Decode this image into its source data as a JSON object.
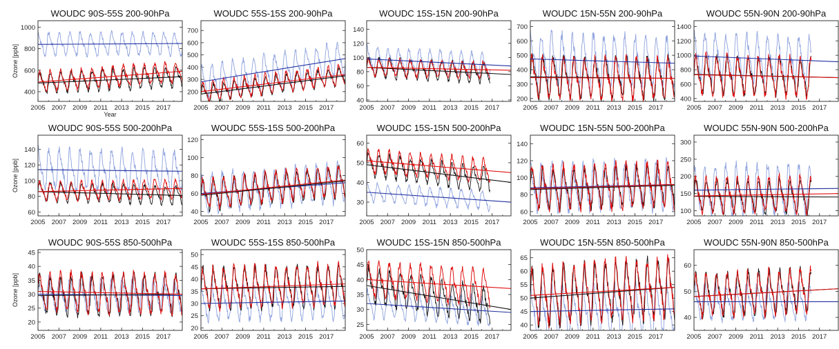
{
  "figure": {
    "colors": {
      "black": "#111111",
      "red": "#e01010",
      "blue": "#2030a0",
      "lightblue": "#8ea2dd"
    }
  },
  "chart_data": [
    {
      "type": "line",
      "title": "WOUDC 90S-55S 200-90hPa",
      "xlabel": "Year",
      "ylabel": "Ozone [ppb]",
      "xlim": [
        2005,
        2018.8
      ],
      "xticks": [
        2005,
        2007,
        2009,
        2011,
        2013,
        2015,
        2017
      ],
      "ylim": [
        310,
        1060
      ],
      "yticks": [
        400,
        600,
        800,
        1000
      ],
      "trends": {
        "black": [
          480,
          540
        ],
        "red": [
          490,
          590
        ],
        "blue": [
          840,
          848
        ]
      },
      "amplitudes": {
        "black": 80,
        "red": 80,
        "blue": 90
      },
      "x_end": 2018.8
    },
    {
      "type": "line",
      "title": "WOUDC 55S-15S 200-90hPa",
      "xlabel": "",
      "ylabel": "",
      "xlim": [
        2005,
        2018.8
      ],
      "xticks": [
        2005,
        2007,
        2009,
        2011,
        2013,
        2015,
        2017
      ],
      "ylim": [
        120,
        780
      ],
      "yticks": [
        200,
        300,
        400,
        500,
        600,
        700
      ],
      "trends": {
        "black": [
          180,
          330
        ],
        "red": [
          200,
          340
        ],
        "blue": [
          280,
          470
        ]
      },
      "amplitudes": {
        "black": 60,
        "red": 70,
        "blue": 110
      },
      "x_end": 2018.8
    },
    {
      "type": "line",
      "title": "WOUDC 15S-15N 200-90hPa",
      "xlabel": "",
      "ylabel": "",
      "xlim": [
        2005,
        2018.8
      ],
      "xticks": [
        2005,
        2007,
        2009,
        2011,
        2013,
        2015,
        2017
      ],
      "ylim": [
        38,
        152
      ],
      "yticks": [
        40,
        60,
        80,
        100,
        120,
        140
      ],
      "trends": {
        "black": [
          86,
          76
        ],
        "red": [
          86,
          82
        ],
        "blue": [
          98,
          88
        ]
      },
      "amplitudes": {
        "black": 12,
        "red": 10,
        "blue": 14
      },
      "x_end": 2016.8
    },
    {
      "type": "line",
      "title": "WOUDC 15N-55N 200-90hPa",
      "xlabel": "",
      "ylabel": "",
      "xlim": [
        2005,
        2018.8
      ],
      "xticks": [
        2005,
        2007,
        2009,
        2011,
        2013,
        2015,
        2017
      ],
      "ylim": [
        180,
        740
      ],
      "yticks": [
        200,
        300,
        400,
        500,
        600,
        700
      ],
      "trends": {
        "black": [
          350,
          340
        ],
        "red": [
          345,
          340
        ],
        "blue": [
          475,
          445
        ]
      },
      "amplitudes": {
        "black": 120,
        "red": 120,
        "blue": 150
      },
      "x_end": 2018.8
    },
    {
      "type": "line",
      "title": "WOUDC 55N-90N 200-90hPa",
      "xlabel": "",
      "ylabel": "",
      "xlim": [
        2005,
        2018.8
      ],
      "xticks": [
        2005,
        2007,
        2009,
        2011,
        2013,
        2015,
        2017
      ],
      "ylim": [
        360,
        1480
      ],
      "yticks": [
        400,
        600,
        800,
        1000,
        1200,
        1400
      ],
      "trends": {
        "black": [
          735,
          690
        ],
        "red": [
          730,
          690
        ],
        "blue": [
          990,
          910
        ]
      },
      "amplitudes": {
        "black": 220,
        "red": 230,
        "blue": 270
      },
      "x_end": 2016.2
    },
    {
      "type": "line",
      "title": "WOUDC 90S-55S 500-200hPa",
      "xlabel": "",
      "ylabel": "Ozone [ppb]",
      "xlim": [
        2005,
        2018.8
      ],
      "xticks": [
        2005,
        2007,
        2009,
        2011,
        2013,
        2015,
        2017
      ],
      "ylim": [
        55,
        158
      ],
      "yticks": [
        60,
        80,
        100,
        120,
        140
      ],
      "trends": {
        "black": [
          86,
          81
        ],
        "red": [
          86,
          90
        ],
        "blue": [
          114,
          112
        ]
      },
      "amplitudes": {
        "black": 10,
        "red": 10,
        "blue": 22
      },
      "x_end": 2018.8
    },
    {
      "type": "line",
      "title": "WOUDC 55S-15S 500-200hPa",
      "xlabel": "",
      "ylabel": "",
      "xlim": [
        2005,
        2018.8
      ],
      "xticks": [
        2005,
        2007,
        2009,
        2011,
        2013,
        2015,
        2017
      ],
      "ylim": [
        35,
        125
      ],
      "yticks": [
        40,
        60,
        80,
        100,
        120
      ],
      "trends": {
        "black": [
          58,
          74
        ],
        "red": [
          59,
          75
        ],
        "blue": [
          60,
          72
        ]
      },
      "amplitudes": {
        "black": 14,
        "red": 14,
        "blue": 18
      },
      "x_end": 2018.8
    },
    {
      "type": "line",
      "title": "WOUDC 15S-15N 500-200hPa",
      "xlabel": "",
      "ylabel": "",
      "xlim": [
        2005,
        2018.8
      ],
      "xticks": [
        2005,
        2007,
        2009,
        2011,
        2013,
        2015,
        2017
      ],
      "ylim": [
        23,
        64
      ],
      "yticks": [
        30,
        40,
        50,
        60
      ],
      "trends": {
        "black": [
          49,
          40
        ],
        "red": [
          51,
          45
        ],
        "blue": [
          35,
          30
        ]
      },
      "amplitudes": {
        "black": 5,
        "red": 5,
        "blue": 4
      },
      "x_end": 2016.8
    },
    {
      "type": "line",
      "title": "WOUDC 15N-55N 500-200hPa",
      "xlabel": "",
      "ylabel": "",
      "xlim": [
        2005,
        2018.8
      ],
      "xticks": [
        2005,
        2007,
        2009,
        2011,
        2013,
        2015,
        2017
      ],
      "ylim": [
        55,
        150
      ],
      "yticks": [
        60,
        80,
        100,
        120,
        140
      ],
      "trends": {
        "black": [
          86,
          91
        ],
        "red": [
          87,
          92
        ],
        "blue": [
          88,
          92
        ]
      },
      "amplitudes": {
        "black": 20,
        "red": 22,
        "blue": 24
      },
      "x_end": 2018.8
    },
    {
      "type": "line",
      "title": "WOUDC 55N-90N 500-200hPa",
      "xlabel": "",
      "ylabel": "",
      "xlim": [
        2005,
        2018.8
      ],
      "xticks": [
        2005,
        2007,
        2009,
        2011,
        2013,
        2015,
        2017
      ],
      "ylim": [
        85,
        320
      ],
      "yticks": [
        100,
        150,
        200,
        250,
        300
      ],
      "trends": {
        "black": [
          142,
          140
        ],
        "red": [
          143,
          150
        ],
        "blue": [
          160,
          165
        ]
      },
      "amplitudes": {
        "black": 40,
        "red": 45,
        "blue": 60
      },
      "x_end": 2016.2
    },
    {
      "type": "line",
      "title": "WOUDC 90S-55S 850-500hPa",
      "xlabel": "",
      "ylabel": "Ozone [ppb]",
      "xlim": [
        2005,
        2018.8
      ],
      "xticks": [
        2005,
        2007,
        2009,
        2011,
        2013,
        2015,
        2017
      ],
      "ylim": [
        17,
        46
      ],
      "yticks": [
        20,
        25,
        30,
        35,
        40,
        45
      ],
      "trends": {
        "black": [
          29.5,
          30
        ],
        "red": [
          31,
          30
        ],
        "blue": [
          30,
          29.5
        ]
      },
      "amplitudes": {
        "black": 6,
        "red": 6,
        "blue": 5
      },
      "x_end": 2018.8
    },
    {
      "type": "line",
      "title": "WOUDC 55S-15S 850-500hPa",
      "xlabel": "",
      "ylabel": "",
      "xlim": [
        2005,
        2018.8
      ],
      "xticks": [
        2005,
        2007,
        2009,
        2011,
        2013,
        2015,
        2017
      ],
      "ylim": [
        19,
        52
      ],
      "yticks": [
        20,
        25,
        30,
        35,
        40,
        45,
        50
      ],
      "trends": {
        "black": [
          36,
          37
        ],
        "red": [
          36,
          38
        ],
        "blue": [
          30,
          31
        ]
      },
      "amplitudes": {
        "black": 7,
        "red": 7,
        "blue": 6
      },
      "x_end": 2018.8
    },
    {
      "type": "line",
      "title": "WOUDC 15S-15N 850-500hPa",
      "xlabel": "",
      "ylabel": "",
      "xlim": [
        2005,
        2018.8
      ],
      "xticks": [
        2005,
        2007,
        2009,
        2011,
        2013,
        2015,
        2017
      ],
      "ylim": [
        23,
        50
      ],
      "yticks": [
        25,
        30,
        35,
        40,
        45,
        50
      ],
      "trends": {
        "black": [
          38,
          30
        ],
        "red": [
          40,
          37
        ],
        "blue": [
          32,
          29
        ]
      },
      "amplitudes": {
        "black": 5,
        "red": 5,
        "blue": 4
      },
      "x_end": 2016.8
    },
    {
      "type": "line",
      "title": "WOUDC 15N-55N 850-500hPa",
      "xlabel": "",
      "ylabel": "",
      "xlim": [
        2005,
        2018.8
      ],
      "xticks": [
        2005,
        2007,
        2009,
        2011,
        2013,
        2015,
        2017
      ],
      "ylim": [
        38,
        68
      ],
      "yticks": [
        40,
        45,
        50,
        55,
        60,
        65
      ],
      "trends": {
        "black": [
          50,
          54
        ],
        "red": [
          51,
          54
        ],
        "blue": [
          45,
          46
        ]
      },
      "amplitudes": {
        "black": 9,
        "red": 9,
        "blue": 8
      },
      "x_end": 2018.8
    },
    {
      "type": "line",
      "title": "WOUDC 55N-90N 850-500hPa",
      "xlabel": "",
      "ylabel": "",
      "xlim": [
        2005,
        2018.8
      ],
      "xticks": [
        2005,
        2007,
        2009,
        2011,
        2013,
        2015,
        2017
      ],
      "ylim": [
        35,
        66
      ],
      "yticks": [
        40,
        50,
        60
      ],
      "trends": {
        "black": [
          48,
          51
        ],
        "red": [
          48,
          51
        ],
        "blue": [
          46,
          46
        ]
      },
      "amplitudes": {
        "black": 7,
        "red": 7,
        "blue": 6
      },
      "x_end": 2016.2
    }
  ]
}
